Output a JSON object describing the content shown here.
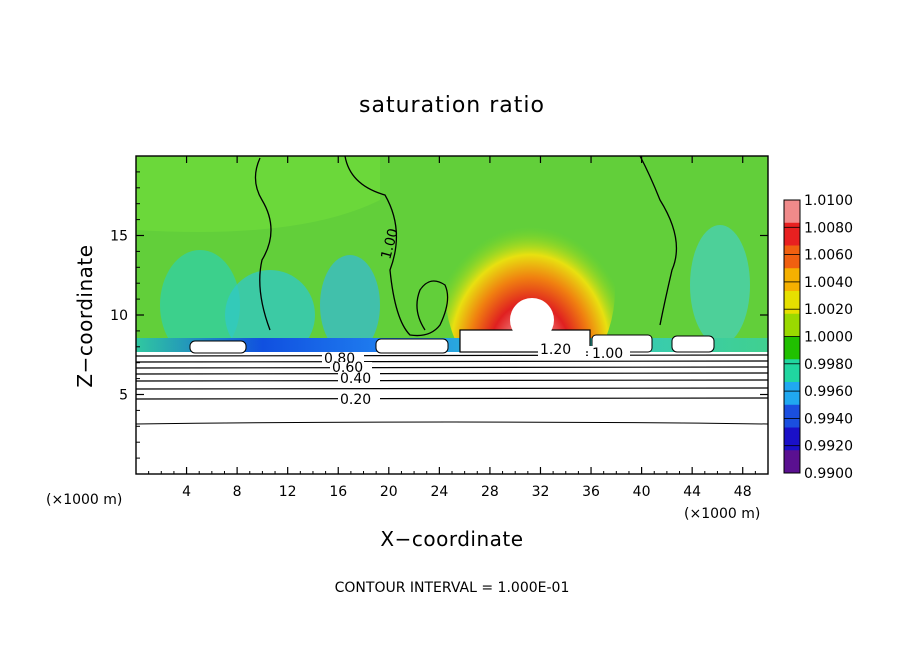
{
  "chart_data": {
    "type": "heatmap",
    "title": "saturation ratio",
    "xlabel": "X−coordinate",
    "ylabel": "Z−coordinate",
    "x_unit": "(×1000 m)",
    "y_unit": "(×1000 m)",
    "xlim": [
      0,
      50
    ],
    "ylim": [
      0,
      20
    ],
    "x_ticks": [
      "4",
      "8",
      "12",
      "16",
      "20",
      "24",
      "28",
      "32",
      "36",
      "40",
      "44",
      "48"
    ],
    "y_ticks": [
      "5",
      "10",
      "15"
    ],
    "colorbar": {
      "labels": [
        "1.0100",
        "1.0080",
        "1.0060",
        "1.0040",
        "1.0020",
        "1.0000",
        "0.9980",
        "0.9960",
        "0.9940",
        "0.9920",
        "0.9900"
      ],
      "colors": [
        "#f08a8a",
        "#e82020",
        "#f06010",
        "#f5b000",
        "#e6e000",
        "#9ad900",
        "#20c000",
        "#20d6a0",
        "#20a8f0",
        "#1a4fe0",
        "#1a10c8",
        "#5a1090"
      ]
    },
    "contour_labels": [
      "1.00",
      "1.20",
      "1.00",
      "0.80",
      "0.60",
      "0.40",
      "0.20"
    ],
    "footer": "CONTOUR INTERVAL = 1.000E-01"
  }
}
